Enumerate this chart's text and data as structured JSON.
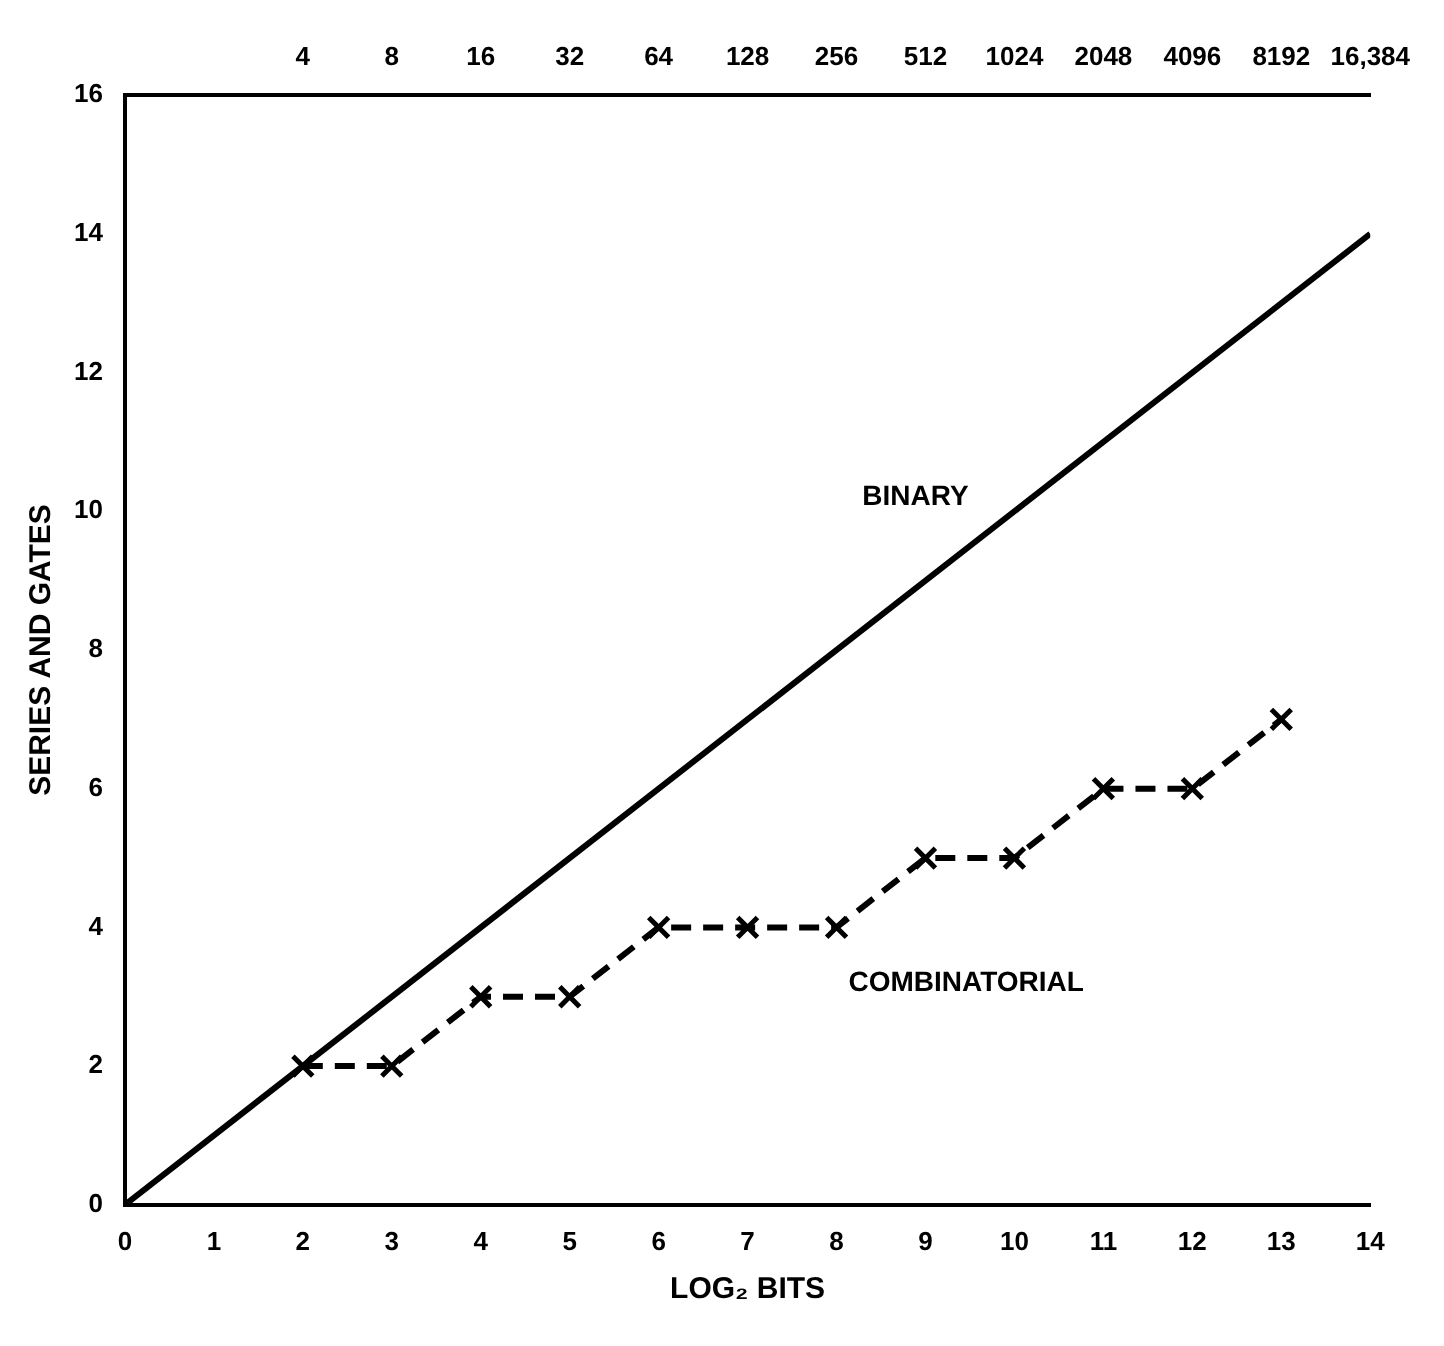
{
  "chart_data": {
    "type": "line",
    "xlabel": "LOG₂ BITS",
    "ylabel": "SERIES AND GATES",
    "xlim": [
      0,
      14
    ],
    "xticks": [
      0,
      1,
      2,
      3,
      4,
      5,
      6,
      7,
      8,
      9,
      10,
      11,
      12,
      13,
      14
    ],
    "x2lim": [
      1,
      16384
    ],
    "log": "x2",
    "x2ticks": [
      4,
      8,
      16,
      32,
      64,
      128,
      256,
      512,
      1024,
      2048,
      4096,
      8192,
      {
        "value": 16384,
        "label": "16,384"
      }
    ],
    "ylim": [
      0,
      16
    ],
    "yticks": [
      0,
      2,
      4,
      6,
      8,
      10,
      12,
      14,
      16
    ],
    "grid": false,
    "legend": false,
    "series": [
      {
        "name": "BINARY",
        "color": "#000000",
        "x": [
          0,
          14
        ],
        "values": [
          0,
          14
        ],
        "marker": "none",
        "line_style": "solid"
      },
      {
        "name": "COMBINATORIAL",
        "color": "#000000",
        "x": [
          2,
          3,
          4,
          5,
          6,
          7,
          8,
          9,
          10,
          11,
          12,
          13
        ],
        "values": [
          2,
          2,
          3,
          3,
          4,
          4,
          4,
          5,
          5,
          6,
          6,
          7
        ],
        "marker": "cross",
        "line_style": "dashed"
      }
    ]
  }
}
